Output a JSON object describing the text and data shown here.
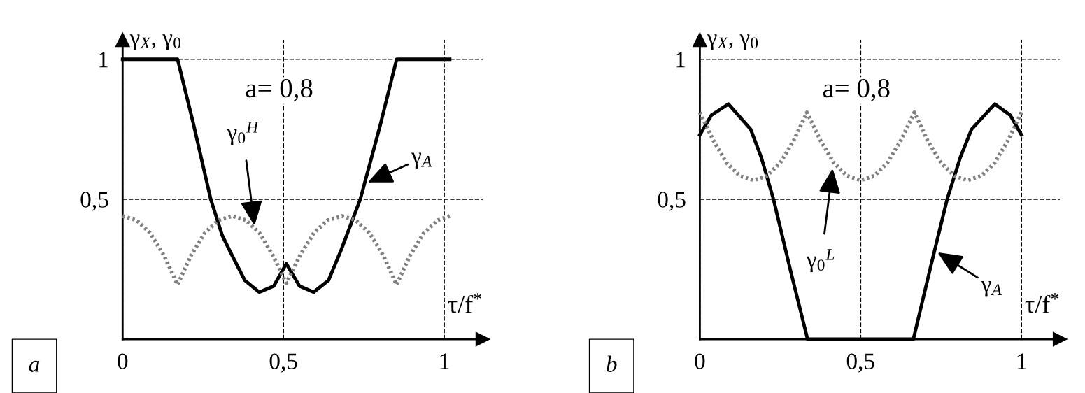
{
  "chart_data": [
    {
      "type": "line",
      "xlabel": "τ/f$^{*}$",
      "ylabel": "γ$_{X}$, γ$_{0}$",
      "xlim": [
        0,
        1.12
      ],
      "ylim": [
        0,
        1.07
      ],
      "xticks": [
        0,
        {
          "value": 0.5,
          "label": "0,5"
        },
        1
      ],
      "yticks": [
        {
          "value": 0.5,
          "label": "0,5"
        },
        1
      ],
      "grid": true,
      "series": [
        {
          "color": "#000000",
          "line_style": "solid",
          "x": [
            0,
            0.171,
            0.22,
            0.274,
            0.31,
            0.34,
            0.38,
            0.425,
            0.47,
            0.509,
            0.55,
            0.594,
            0.64,
            0.68,
            0.739,
            0.8,
            0.852,
            1.017
          ],
          "values": [
            1,
            1,
            0.77,
            0.5,
            0.37,
            0.3,
            0.21,
            0.168,
            0.19,
            0.27,
            0.19,
            0.168,
            0.21,
            0.32,
            0.5,
            0.76,
            1,
            1
          ]
        },
        {
          "color": "#808080",
          "line_style": "dotted",
          "x": [
            0,
            0.043,
            0.085,
            0.128,
            0.171,
            0.213,
            0.256,
            0.298,
            0.341,
            0.383,
            0.425,
            0.467,
            0.509,
            0.552,
            0.595,
            0.638,
            0.682,
            0.724,
            0.767,
            0.81,
            0.852,
            0.894,
            0.937,
            0.98,
            1.017
          ],
          "values": [
            0.44,
            0.425,
            0.38,
            0.3,
            0.195,
            0.3,
            0.38,
            0.425,
            0.44,
            0.425,
            0.38,
            0.3,
            0.2,
            0.3,
            0.38,
            0.425,
            0.44,
            0.425,
            0.38,
            0.3,
            0.195,
            0.3,
            0.38,
            0.425,
            0.44
          ]
        }
      ],
      "annotations": [
        "a",
        "a= 0,8",
        {
          "text": "γ$_{0}$$^{H}$",
          "x": 0.41,
          "y": 0.405
        },
        {
          "text": "γ$_{A}$",
          "x": 0.762,
          "y": 0.56
        }
      ]
    },
    {
      "type": "line",
      "xlabel": "τ/f$^{*}$",
      "ylabel": "γ$_{X}$, γ$_{0}$",
      "xlim": [
        0,
        1.12
      ],
      "ylim": [
        0,
        1.07
      ],
      "xticks": [
        0,
        {
          "value": 0.5,
          "label": "0,5"
        },
        1
      ],
      "yticks": [
        {
          "value": 0.5,
          "label": "0,5"
        },
        1
      ],
      "grid": true,
      "series": [
        {
          "color": "#000000",
          "line_style": "solid",
          "x": [
            0,
            0.036,
            0.089,
            0.158,
            0.191,
            0.229,
            0.281,
            0.335,
            0.664,
            0.72,
            0.769,
            0.81,
            0.845,
            0.917,
            0.965,
            1.0
          ],
          "values": [
            0.73,
            0.8,
            0.84,
            0.75,
            0.65,
            0.5,
            0.25,
            0,
            0,
            0.27,
            0.5,
            0.65,
            0.75,
            0.84,
            0.8,
            0.73
          ]
        },
        {
          "color": "#808080",
          "line_style": "dotted",
          "x": [
            0,
            0.042,
            0.083,
            0.125,
            0.167,
            0.208,
            0.25,
            0.292,
            0.333,
            0.375,
            0.417,
            0.458,
            0.5,
            0.542,
            0.583,
            0.625,
            0.667,
            0.708,
            0.75,
            0.792,
            0.833,
            0.875,
            0.917,
            0.958,
            1.0
          ],
          "values": [
            0.81,
            0.71,
            0.63,
            0.583,
            0.568,
            0.583,
            0.63,
            0.71,
            0.81,
            0.71,
            0.63,
            0.583,
            0.568,
            0.583,
            0.63,
            0.71,
            0.81,
            0.71,
            0.63,
            0.583,
            0.568,
            0.583,
            0.63,
            0.71,
            0.81
          ]
        }
      ],
      "annotations": [
        "b",
        "a= 0,8",
        {
          "text": "γ$_{0}$$^{L}$",
          "x": 0.413,
          "y": 0.61
        },
        {
          "text": "γ$_{A}$",
          "x": 0.739,
          "y": 0.31
        }
      ]
    }
  ]
}
